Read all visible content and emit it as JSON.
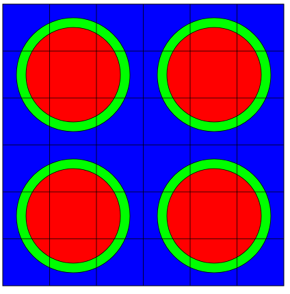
{
  "colors": {
    "background": "#0000ff",
    "ring": "#00ff00",
    "fill": "#ff0000",
    "outline": "#000000",
    "grid": "#000000",
    "page": "#ffffff"
  },
  "grid": {
    "rows": 6,
    "cols": 6
  },
  "cells": [
    {
      "id": "top-left"
    },
    {
      "id": "top-right"
    },
    {
      "id": "bottom-left"
    },
    {
      "id": "bottom-right"
    }
  ]
}
